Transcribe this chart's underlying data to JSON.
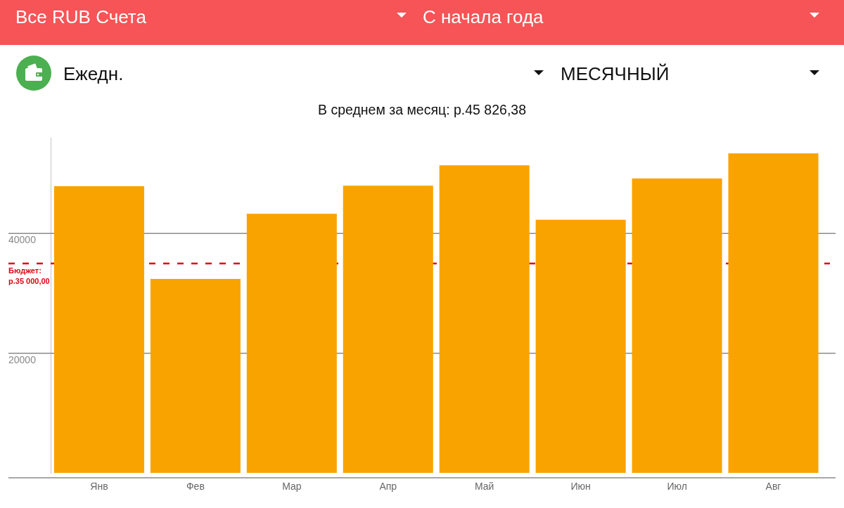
{
  "chart_data": {
    "type": "bar",
    "title": "В среднем за месяц: р.45 826,38",
    "annotations": [
      "Все RUB Счета",
      "С начала года",
      "Ежедн.",
      "МЕСЯЧНЫЙ"
    ],
    "categories": [
      "Янв",
      "Фев",
      "Мар",
      "Апр",
      "Май",
      "Июн",
      "Июл",
      "Авг"
    ],
    "values": [
      47900,
      32400,
      43300,
      48000,
      51400,
      42300,
      49200,
      53400
    ],
    "color": "#f9a300",
    "ylim": [
      0,
      56000
    ],
    "yticks": [
      20000,
      40000
    ],
    "grid": "y",
    "ref_lines": [
      {
        "axis": "y",
        "value": 35000,
        "label": "Бюджет:\nр.35 000,00",
        "color": "#e0000f",
        "line_style": "dashed"
      }
    ]
  }
}
